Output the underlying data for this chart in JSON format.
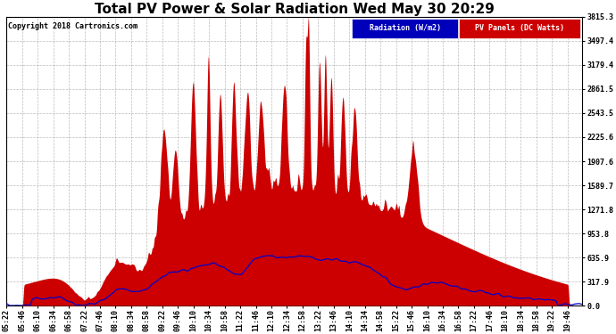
{
  "title": "Total PV Power & Solar Radiation Wed May 30 20:29",
  "copyright": "Copyright 2018 Cartronics.com",
  "legend_radiation": "Radiation (W/m2)",
  "legend_pv": "PV Panels (DC Watts)",
  "legend_radiation_bg": "#0000bb",
  "legend_pv_bg": "#cc0000",
  "legend_radiation_fg": "#ffffff",
  "legend_pv_fg": "#ffffff",
  "ymin": 0.0,
  "ymax": 3815.3,
  "yticks": [
    0.0,
    317.9,
    635.9,
    953.8,
    1271.8,
    1589.7,
    1907.6,
    2225.6,
    2543.5,
    2861.5,
    3179.4,
    3497.4,
    3815.3
  ],
  "background_color": "#ffffff",
  "plot_bg": "#ffffff",
  "grid_color": "#aaaaaa",
  "pv_fill_color": "#cc0000",
  "pv_line_color": "#cc0000",
  "radiation_line_color": "#0000cc",
  "title_fontsize": 11,
  "tick_fontsize": 6,
  "num_points": 1800
}
